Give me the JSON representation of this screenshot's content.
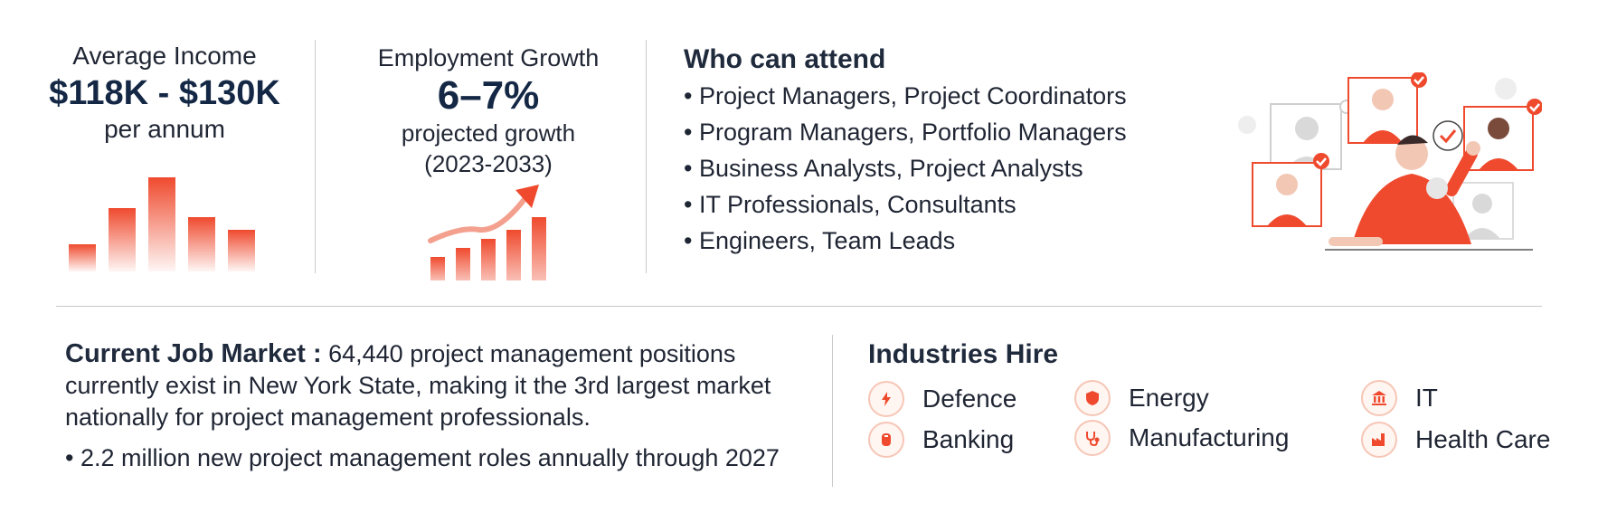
{
  "income": {
    "title": "Average Income",
    "value": "$118K - $130K",
    "unit": "per annum"
  },
  "growth": {
    "title": "Employment Growth",
    "value": "6–7%",
    "sub1": "projected growth",
    "sub2": "(2023-2033)"
  },
  "attend": {
    "title": "Who can attend",
    "items": [
      "• Project Managers, Project Coordinators",
      "• Program Managers, Portfolio Managers",
      "• Business Analysts, Project Analysts",
      "• IT Professionals, Consultants",
      "• Engineers, Team Leads"
    ]
  },
  "market": {
    "label": "Current Job Market :",
    "text": " 64,440 project management positions currently exist in New York State, making it the 3rd largest market nationally for project management professionals.",
    "bullet": "• 2.2 million new project management roles annually through 2027"
  },
  "industries": {
    "title": "Industries Hire",
    "items": [
      {
        "label": "Defence",
        "icon": "lightning-icon"
      },
      {
        "label": "Energy",
        "icon": "shield-icon"
      },
      {
        "label": "IT",
        "icon": "bank-icon"
      },
      {
        "label": "Banking",
        "icon": "piggy-bank-icon"
      },
      {
        "label": "Manufacturing",
        "icon": "stethoscope-icon"
      },
      {
        "label": "Health Care",
        "icon": "factory-icon"
      }
    ]
  },
  "colors": {
    "accent": "#ef4a2e",
    "navy": "#142845",
    "divider": "#c9c9c9"
  }
}
